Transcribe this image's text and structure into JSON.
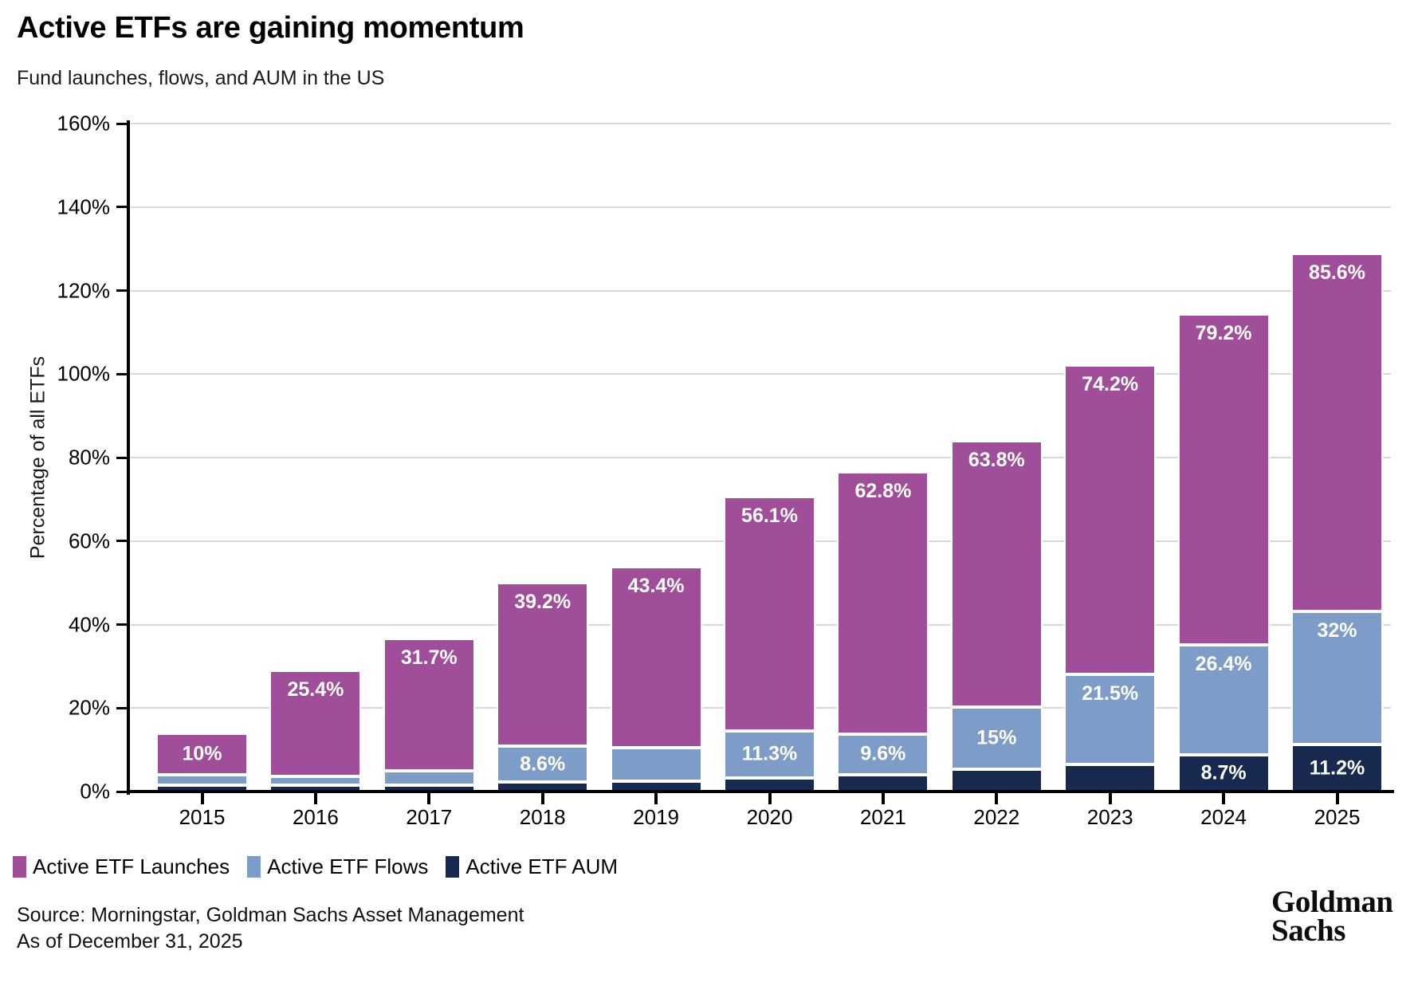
{
  "title": "Active ETFs are gaining momentum",
  "subtitle": "Fund launches, flows, and AUM in the US",
  "chart_data": {
    "type": "bar",
    "stacked": true,
    "title": "Active ETFs are gaining momentum",
    "subtitle": "Fund launches, flows, and AUM in the US",
    "categories": [
      "2015",
      "2016",
      "2017",
      "2018",
      "2019",
      "2020",
      "2021",
      "2022",
      "2023",
      "2024",
      "2025"
    ],
    "series": [
      {
        "name": "Active ETF AUM",
        "color": "#17294E",
        "values": [
          1.5,
          1.6,
          1.6,
          2.2,
          2.5,
          3.3,
          4.1,
          5.3,
          6.5,
          8.7,
          11.2
        ],
        "labels": [
          null,
          null,
          null,
          null,
          null,
          null,
          null,
          null,
          null,
          "8.7%",
          "11.2%"
        ]
      },
      {
        "name": "Active ETF Flows",
        "color": "#7E9CC8",
        "values": [
          2.5,
          2.0,
          3.4,
          8.6,
          8.0,
          11.3,
          9.6,
          15.0,
          21.5,
          26.4,
          32.0
        ],
        "labels": [
          null,
          null,
          null,
          "8.6%",
          null,
          "11.3%",
          "9.6%",
          "15%",
          "21.5%",
          "26.4%",
          "32%"
        ]
      },
      {
        "name": "Active ETF Launches",
        "color": "#A04E99",
        "values": [
          10.0,
          25.4,
          31.7,
          39.2,
          43.4,
          56.1,
          62.8,
          63.8,
          74.2,
          79.2,
          85.6
        ],
        "labels": [
          "10%",
          "25.4%",
          "31.7%",
          "39.2%",
          "43.4%",
          "56.1%",
          "62.8%",
          "63.8%",
          "74.2%",
          "79.2%",
          "85.6%"
        ]
      }
    ],
    "xlabel": "",
    "ylabel": "Percentage of all ETFs",
    "ylim": [
      0,
      160
    ],
    "ytick_step": 20,
    "ytick_labels": [
      "0%",
      "20%",
      "40%",
      "60%",
      "80%",
      "100%",
      "120%",
      "140%",
      "160%"
    ],
    "grid": true,
    "legend_position": "bottom-left"
  },
  "legend": {
    "items": [
      {
        "label": "Active ETF Launches",
        "color": "#A04E99"
      },
      {
        "label": "Active ETF Flows",
        "color": "#7E9CC8"
      },
      {
        "label": "Active ETF AUM",
        "color": "#17294E"
      }
    ]
  },
  "footer": {
    "source_line1": "Source: Morningstar, Goldman Sachs Asset Management",
    "source_line2": "As of December 31, 2025",
    "logo_line1": "Goldman",
    "logo_line2": "Sachs"
  }
}
